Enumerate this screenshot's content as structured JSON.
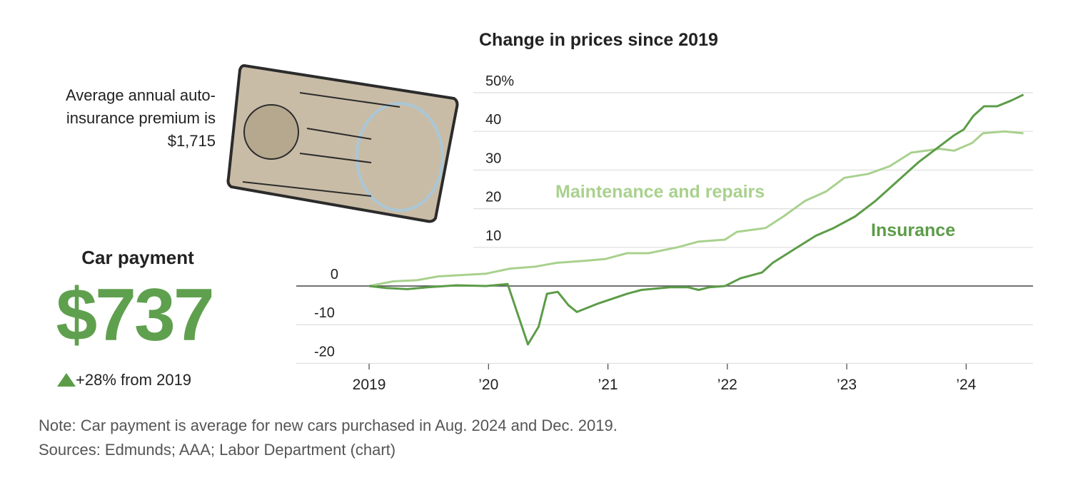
{
  "premium_text": "Average annual auto-insurance premium is $1,715",
  "car_payment": {
    "title": "Car payment",
    "value": "$737",
    "change": "+28% from 2019"
  },
  "chart_data": {
    "type": "line",
    "title": "Change in prices since 2019",
    "xlim": [
      2018.39,
      2024.56
    ],
    "ylim": [
      -20.1,
      50
    ],
    "xticks": [
      {
        "value": 2019,
        "label": "2019"
      },
      {
        "value": 2020,
        "label": "’20"
      },
      {
        "value": 2021,
        "label": "’21"
      },
      {
        "value": 2022,
        "label": "’22"
      },
      {
        "value": 2023,
        "label": "’23"
      },
      {
        "value": 2024,
        "label": "’24"
      }
    ],
    "yticks": [
      {
        "value": 50,
        "label": "50%"
      },
      40,
      30,
      20,
      10,
      0,
      -10,
      -20
    ],
    "grid": true,
    "series": [
      {
        "name": "Maintenance and repairs",
        "color": "#a9d18e",
        "x": [
          2019,
          2019.2,
          2019.4,
          2019.58,
          2019.98,
          2020.18,
          2020.39,
          2020.57,
          2020.8,
          2020.98,
          2021.16,
          2021.34,
          2021.58,
          2021.76,
          2021.98,
          2022.08,
          2022.32,
          2022.47,
          2022.65,
          2022.83,
          2022.98,
          2023.18,
          2023.36,
          2023.54,
          2023.78,
          2023.9,
          2024.05,
          2024.14,
          2024.32,
          2024.48
        ],
        "values": [
          0,
          1.2,
          1.5,
          2.5,
          3.2,
          4.5,
          5,
          6,
          6.5,
          7,
          8.5,
          8.5,
          10,
          11.5,
          12,
          14,
          15,
          18,
          22,
          24.5,
          28,
          29,
          31,
          34.5,
          35.5,
          35,
          37,
          39.5,
          40,
          39.5
        ]
      },
      {
        "name": "Insurance",
        "color": "#5c9c48",
        "x": [
          2019,
          2019.14,
          2019.32,
          2019.49,
          2019.73,
          2019.98,
          2020.16,
          2020.33,
          2020.42,
          2020.49,
          2020.58,
          2020.67,
          2020.74,
          2020.92,
          2021.16,
          2021.28,
          2021.52,
          2021.67,
          2021.76,
          2021.85,
          2021.98,
          2022.11,
          2022.29,
          2022.38,
          2022.56,
          2022.74,
          2022.89,
          2023.07,
          2023.24,
          2023.42,
          2023.6,
          2023.75,
          2023.9,
          2023.98,
          2024.06,
          2024.15,
          2024.26,
          2024.38,
          2024.48
        ],
        "values": [
          0,
          -0.5,
          -0.8,
          -0.3,
          0.2,
          0,
          0.5,
          -15.1,
          -10.5,
          -2,
          -1.5,
          -5,
          -6.7,
          -4.5,
          -2,
          -1,
          -0.3,
          -0.3,
          -1,
          -0.3,
          0,
          2,
          3.5,
          6,
          9.5,
          13,
          15,
          18,
          22,
          27,
          32,
          35.5,
          39,
          40.5,
          44,
          46.5,
          46.5,
          48,
          49.5
        ]
      }
    ]
  },
  "note": "Note: Car payment is average for new cars purchased in Aug. 2024 and Dec. 2019.",
  "source": "Sources: Edmunds; AAA; Labor Department (chart)"
}
